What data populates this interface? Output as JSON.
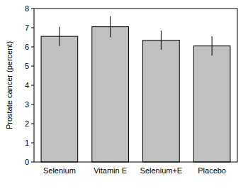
{
  "chart_data": {
    "type": "bar",
    "y_label": "Prostate cancer (percent)",
    "categories": [
      "Selenium",
      "Vitamin E",
      "Selenium+E",
      "Placebo"
    ],
    "values": [
      6.55,
      7.05,
      6.35,
      6.05
    ],
    "errors": [
      0.5,
      0.55,
      0.5,
      0.5
    ],
    "color": "#c0c0c0",
    "ylim": [
      0,
      8
    ],
    "yticks": [
      0,
      1,
      2,
      3,
      4,
      5,
      6,
      7,
      8
    ],
    "grid": false
  }
}
